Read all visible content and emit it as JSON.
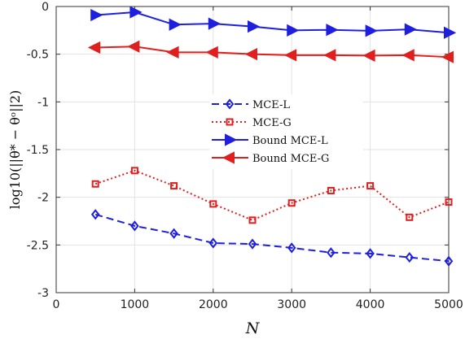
{
  "chart_data": {
    "type": "line",
    "xlabel": "N",
    "ylabel": "log10(||θ* − θᵒ||2)",
    "xlim": [
      0,
      5000
    ],
    "ylim": [
      -3,
      0
    ],
    "xticks": [
      0,
      1000,
      2000,
      3000,
      4000,
      5000
    ],
    "yticks": [
      0,
      -0.5,
      -1,
      -1.5,
      -2,
      -2.5,
      -3
    ],
    "xtick_labels": [
      "0",
      "1000",
      "2000",
      "3000",
      "4000",
      "5000"
    ],
    "ytick_labels": [
      "0",
      "-0.5",
      "-1",
      "-1.5",
      "-2",
      "-2.5",
      "-3"
    ],
    "grid": true,
    "legend_position": "center",
    "x": [
      500,
      1000,
      1500,
      2000,
      2500,
      3000,
      3500,
      4000,
      4500,
      5000
    ],
    "series": [
      {
        "name": "MCE-L",
        "color": "#1f1fe0",
        "line_style": "dashed",
        "marker": "diamond",
        "values": [
          -2.18,
          -2.3,
          -2.38,
          -2.48,
          -2.49,
          -2.53,
          -2.58,
          -2.59,
          -2.63,
          -2.67
        ]
      },
      {
        "name": "MCE-G",
        "color": "#e01f1f",
        "line_style": "dotted",
        "marker": "square",
        "values": [
          -1.86,
          -1.72,
          -1.88,
          -2.07,
          -2.24,
          -2.06,
          -1.93,
          -1.88,
          -2.21,
          -2.05
        ]
      },
      {
        "name": "Bound MCE-L",
        "color": "#1f1fe0",
        "line_style": "solid",
        "marker": "triangle-right",
        "values": [
          -0.09,
          -0.06,
          -0.19,
          -0.18,
          -0.21,
          -0.25,
          -0.245,
          -0.255,
          -0.24,
          -0.275
        ]
      },
      {
        "name": "Bound MCE-G",
        "color": "#e01f1f",
        "line_style": "solid",
        "marker": "triangle-left",
        "values": [
          -0.43,
          -0.42,
          -0.48,
          -0.48,
          -0.5,
          -0.51,
          -0.51,
          -0.515,
          -0.51,
          -0.53
        ]
      }
    ]
  }
}
